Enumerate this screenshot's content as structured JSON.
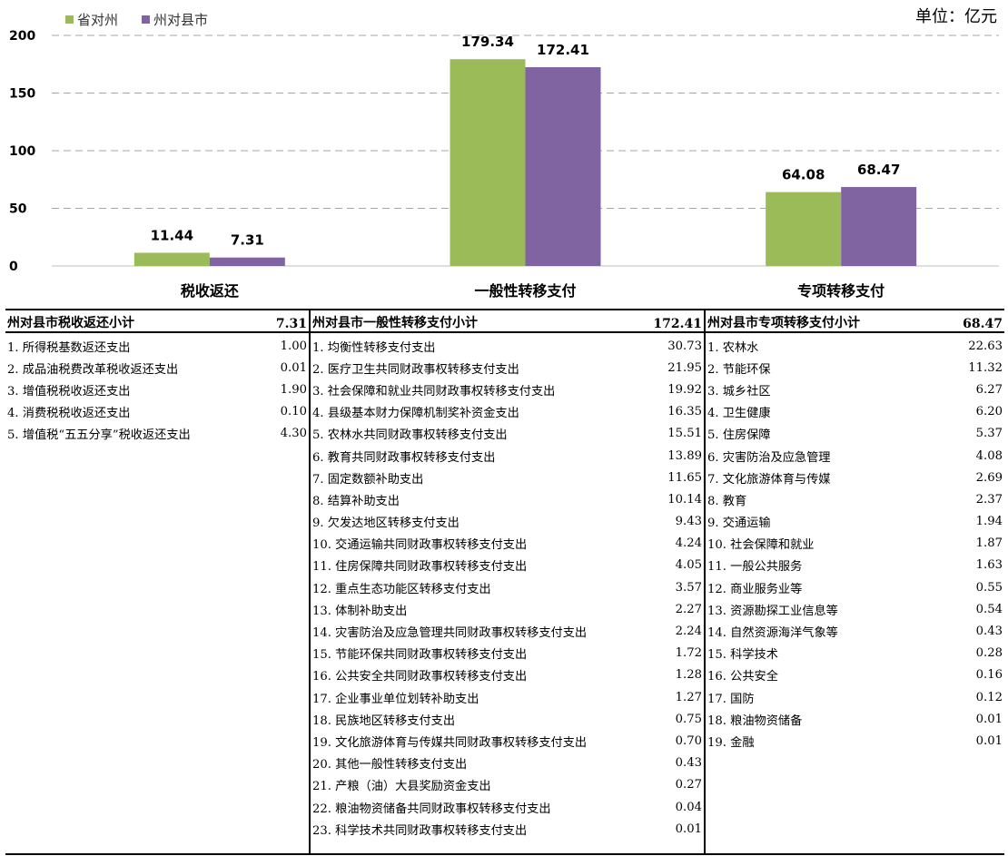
{
  "unit_label": "单位：亿元",
  "chart_data": {
    "type": "bar",
    "categories": [
      "税收返还",
      "一般性转移支付",
      "专项转移支付"
    ],
    "series": [
      {
        "name": "省对州",
        "values": [
          11.44,
          179.34,
          64.08
        ],
        "color": "#9bbb59"
      },
      {
        "name": "州对县市",
        "values": [
          7.31,
          172.41,
          68.47
        ],
        "color": "#8064a2"
      }
    ],
    "data_labels": [
      [
        "11.44",
        "179.34",
        "64.08"
      ],
      [
        "7.31",
        "172.41",
        "68.47"
      ]
    ],
    "yticks": [
      "0",
      "50",
      "100",
      "150",
      "200"
    ],
    "ylim": [
      0,
      200
    ],
    "grid": true,
    "legend_position": "top-left"
  },
  "tables": [
    {
      "title": "州对县市税收返还小计",
      "total": "7.31",
      "rows": [
        {
          "label": "1. 所得税基数返还支出",
          "value": "1.00"
        },
        {
          "label": "2. 成品油税费改革税收返还支出",
          "value": "0.01"
        },
        {
          "label": "3. 增值税税收返还支出",
          "value": "1.90"
        },
        {
          "label": "4. 消费税税收返还支出",
          "value": "0.10"
        },
        {
          "label": "5. 增值税“五五分享”税收返还支出",
          "value": "4.30"
        }
      ]
    },
    {
      "title": "州对县市一般性转移支付小计",
      "total": "172.41",
      "rows": [
        {
          "label": "1. 均衡性转移支付支出",
          "value": "30.73"
        },
        {
          "label": "2. 医疗卫生共同财政事权转移支付支出",
          "value": "21.95"
        },
        {
          "label": "3. 社会保障和就业共同财政事权转移支付支出",
          "value": "19.92"
        },
        {
          "label": "4. 县级基本财力保障机制奖补资金支出",
          "value": "16.35"
        },
        {
          "label": "5. 农林水共同财政事权转移支付支出",
          "value": "15.51"
        },
        {
          "label": "6. 教育共同财政事权转移支付支出",
          "value": "13.89"
        },
        {
          "label": "7. 固定数额补助支出",
          "value": "11.65"
        },
        {
          "label": "8. 结算补助支出",
          "value": "10.14"
        },
        {
          "label": "9. 欠发达地区转移支付支出",
          "value": "9.43"
        },
        {
          "label": "10. 交通运输共同财政事权转移支付支出",
          "value": "4.24"
        },
        {
          "label": "11. 住房保障共同财政事权转移支付支出",
          "value": "4.05"
        },
        {
          "label": "12. 重点生态功能区转移支付支出",
          "value": "3.57"
        },
        {
          "label": "13. 体制补助支出",
          "value": "2.27"
        },
        {
          "label": "14. 灾害防治及应急管理共同财政事权转移支付支出",
          "value": "2.24"
        },
        {
          "label": "15. 节能环保共同财政事权转移支付支出",
          "value": "1.72"
        },
        {
          "label": "16. 公共安全共同财政事权转移支付支出",
          "value": "1.28"
        },
        {
          "label": "17. 企业事业单位划转补助支出",
          "value": "1.27"
        },
        {
          "label": "18. 民族地区转移支付支出",
          "value": "0.75"
        },
        {
          "label": "19. 文化旅游体育与传媒共同财政事权转移支付支出",
          "value": "0.70"
        },
        {
          "label": "20. 其他一般性转移支付支出",
          "value": "0.43"
        },
        {
          "label": "21. 产粮（油）大县奖励资金支出",
          "value": "0.27"
        },
        {
          "label": "22. 粮油物资储备共同财政事权转移支付支出",
          "value": "0.04"
        },
        {
          "label": "23. 科学技术共同财政事权转移支付支出",
          "value": "0.01"
        }
      ]
    },
    {
      "title": "州对县市专项转移支付小计",
      "total": "68.47",
      "rows": [
        {
          "label": "1. 农林水",
          "value": "22.63"
        },
        {
          "label": "2. 节能环保",
          "value": "11.32"
        },
        {
          "label": "3. 城乡社区",
          "value": "6.27"
        },
        {
          "label": "4. 卫生健康",
          "value": "6.20"
        },
        {
          "label": "5. 住房保障",
          "value": "5.37"
        },
        {
          "label": "6. 灾害防治及应急管理",
          "value": "4.08"
        },
        {
          "label": "7. 文化旅游体育与传媒",
          "value": "2.69"
        },
        {
          "label": "8. 教育",
          "value": "2.37"
        },
        {
          "label": "9. 交通运输",
          "value": "1.94"
        },
        {
          "label": "10. 社会保障和就业",
          "value": "1.87"
        },
        {
          "label": "11. 一般公共服务",
          "value": "1.63"
        },
        {
          "label": "12. 商业服务业等",
          "value": "0.55"
        },
        {
          "label": "13. 资源勘探工业信息等",
          "value": "0.54"
        },
        {
          "label": "14. 自然资源海洋气象等",
          "value": "0.43"
        },
        {
          "label": "15. 科学技术",
          "value": "0.28"
        },
        {
          "label": "16. 公共安全",
          "value": "0.16"
        },
        {
          "label": "17. 国防",
          "value": "0.12"
        },
        {
          "label": "18. 粮油物资储备",
          "value": "0.01"
        },
        {
          "label": "19. 金融",
          "value": "0.01"
        }
      ]
    }
  ]
}
